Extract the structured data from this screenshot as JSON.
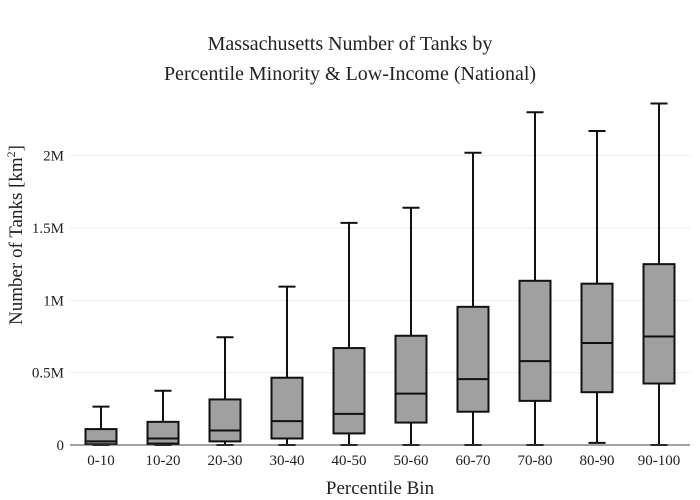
{
  "chart_data": {
    "type": "box",
    "title_line1": "Massachusetts Number of Tanks by",
    "title_line2": "Percentile Minority & Low-Income (National)",
    "xlabel": "Percentile Bin",
    "ylabel_main": "Number of Tanks  [km",
    "ylabel_sup": "2",
    "ylabel_end": "]",
    "ylim": [
      0,
      2350000
    ],
    "yticks": [
      {
        "value": 0,
        "label": "0"
      },
      {
        "value": 500000,
        "label": "0.5M"
      },
      {
        "value": 1000000,
        "label": "1M"
      },
      {
        "value": 1500000,
        "label": "1.5M"
      },
      {
        "value": 2000000,
        "label": "2M"
      }
    ],
    "grid": true,
    "box_color": "#a0a0a0",
    "line_color": "#111111",
    "categories": [
      "0-10",
      "10-20",
      "20-30",
      "30-40",
      "40-50",
      "50-60",
      "60-70",
      "70-80",
      "80-90",
      "90-100"
    ],
    "boxes": [
      {
        "min": 0,
        "q1": 5000,
        "median": 25000,
        "q3": 110000,
        "max": 265000
      },
      {
        "min": 0,
        "q1": 10000,
        "median": 45000,
        "q3": 160000,
        "max": 375000
      },
      {
        "min": 0,
        "q1": 25000,
        "median": 100000,
        "q3": 315000,
        "max": 745000
      },
      {
        "min": 0,
        "q1": 45000,
        "median": 165000,
        "q3": 465000,
        "max": 1095000
      },
      {
        "min": 0,
        "q1": 80000,
        "median": 215000,
        "q3": 670000,
        "max": 1535000
      },
      {
        "min": 0,
        "q1": 155000,
        "median": 355000,
        "q3": 755000,
        "max": 1640000
      },
      {
        "min": 0,
        "q1": 230000,
        "median": 455000,
        "q3": 955000,
        "max": 2020000
      },
      {
        "min": 0,
        "q1": 305000,
        "median": 580000,
        "q3": 1135000,
        "max": 2300000
      },
      {
        "min": 15000,
        "q1": 365000,
        "median": 705000,
        "q3": 1115000,
        "max": 2170000
      },
      {
        "min": 0,
        "q1": 425000,
        "median": 750000,
        "q3": 1250000,
        "max": 2360000
      }
    ]
  }
}
